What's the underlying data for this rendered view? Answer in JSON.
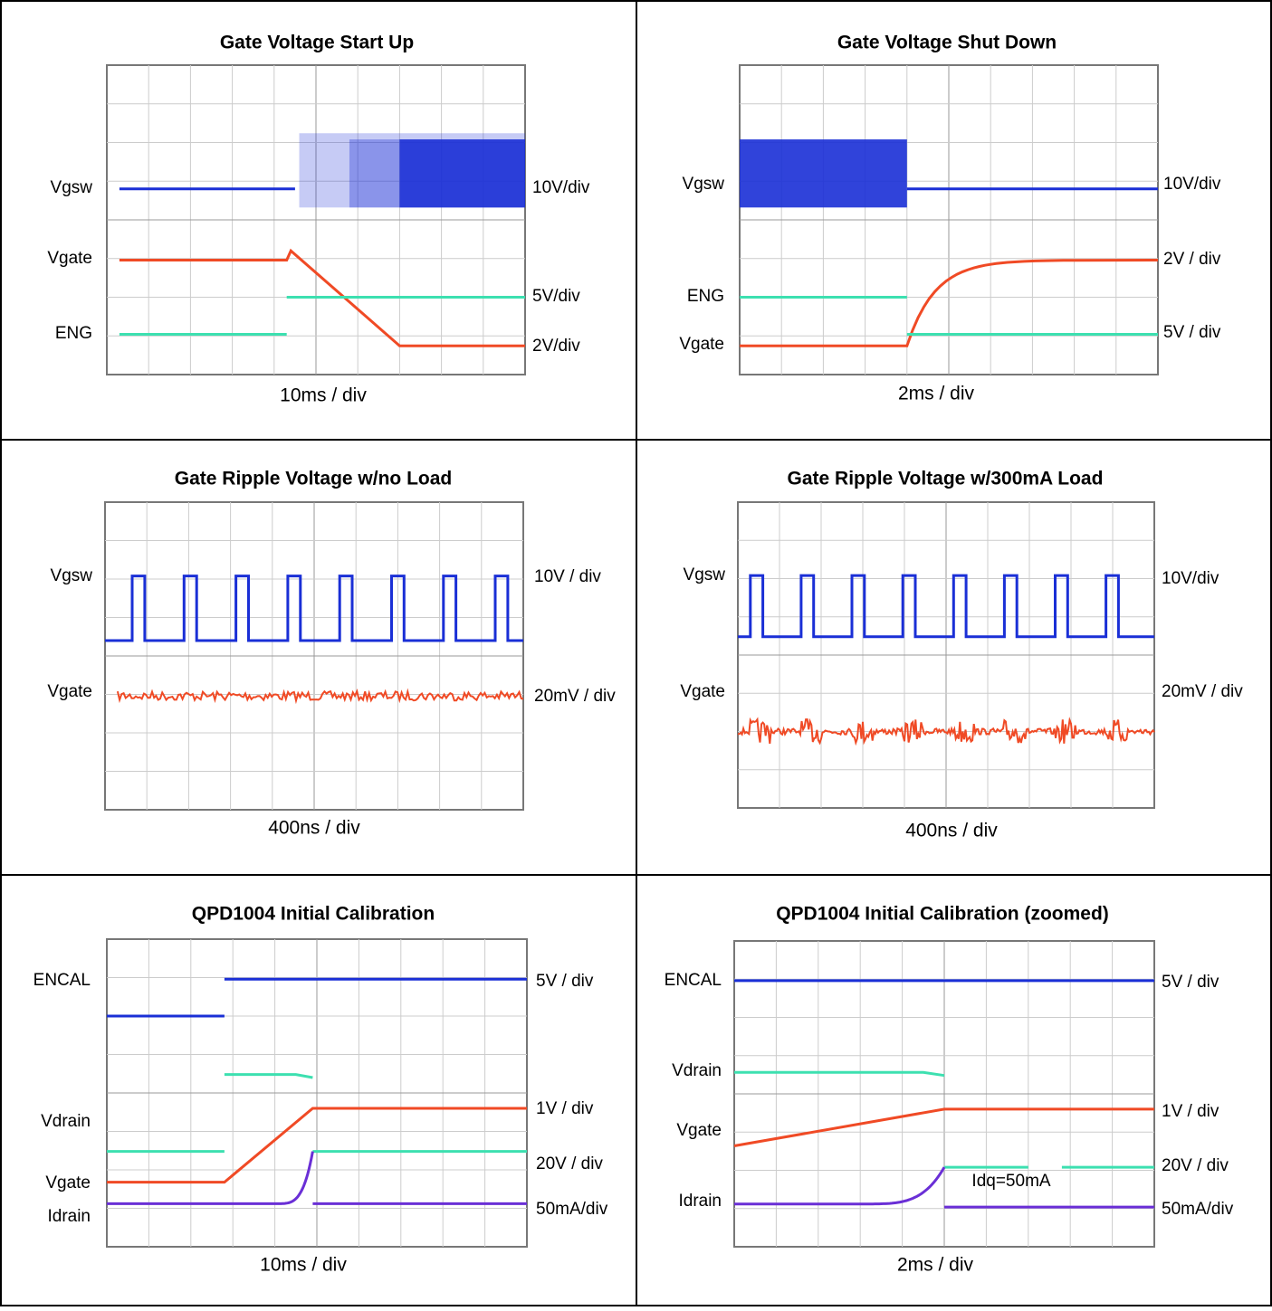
{
  "panels": [
    {
      "title": "Gate Voltage Start Up",
      "left_labels": [
        "Vgsw",
        "Vgate",
        "ENG"
      ],
      "right_labels": [
        "10V/div",
        "5V/div",
        "2V/div"
      ],
      "timebase": "10ms / div"
    },
    {
      "title": "Gate Voltage Shut Down",
      "left_labels": [
        "Vgsw",
        "ENG",
        "Vgate"
      ],
      "right_labels": [
        "10V/div",
        "2V / div",
        "5V / div"
      ],
      "timebase": "2ms / div"
    },
    {
      "title": "Gate Ripple Voltage w/no Load",
      "left_labels": [
        "Vgsw",
        "Vgate"
      ],
      "right_labels": [
        "10V / div",
        "20mV / div"
      ],
      "timebase": "400ns / div"
    },
    {
      "title": "Gate Ripple Voltage w/300mA Load",
      "left_labels": [
        "Vgsw",
        "Vgate"
      ],
      "right_labels": [
        "10V/div",
        "20mV / div"
      ],
      "timebase": "400ns / div"
    },
    {
      "title": "QPD1004 Initial Calibration",
      "left_labels": [
        "ENCAL",
        "Vdrain",
        "Vgate",
        "Idrain"
      ],
      "right_labels": [
        "5V / div",
        "1V / div",
        "20V / div",
        "50mA/div"
      ],
      "timebase": "10ms / div"
    },
    {
      "title": "QPD1004 Initial Calibration (zoomed)",
      "left_labels": [
        "ENCAL",
        "Vdrain",
        "Vgate",
        "Idrain"
      ],
      "right_labels": [
        "5V / div",
        "1V / div",
        "20V / div",
        "50mA/div"
      ],
      "timebase": "2ms / div",
      "annotation": "Idq=50mA"
    }
  ]
}
